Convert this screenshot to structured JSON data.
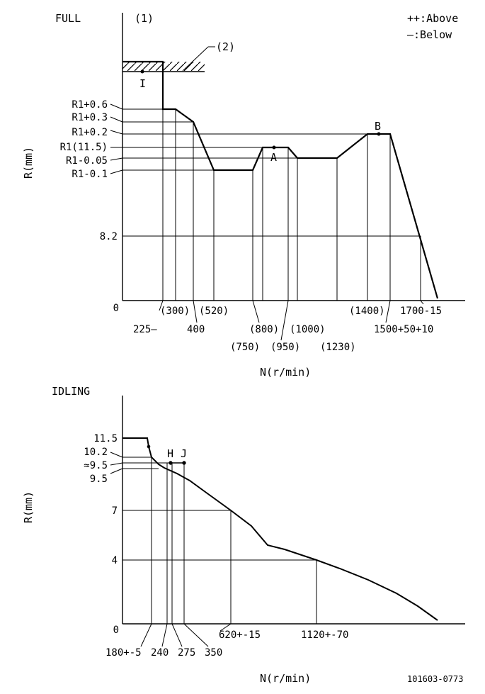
{
  "full": {
    "title": "FULL",
    "marker1": "(1)",
    "marker2": "(2)",
    "marker_I": "I",
    "legend": {
      "above": "++:Above",
      "below": "—:Below"
    },
    "ylabel": "R(mm)",
    "xlabel": "N(r/min)",
    "point_A": "A",
    "point_B": "B",
    "y_ticks": [
      "R1+0.6",
      "R1+0.3",
      "R1+0.2",
      "R1(11.5)",
      "R1-0.05",
      "R1-0.1",
      "8.2",
      "0"
    ],
    "x_ticks": [
      "225—",
      "(300)",
      "400",
      "(520)",
      "(750)",
      "(800)",
      "(950)",
      "(1000)",
      "(1230)",
      "(1400)",
      "1500+50+10",
      "1700-15"
    ]
  },
  "idling": {
    "title": "IDLING",
    "ylabel": "R(mm)",
    "xlabel": "N(r/min)",
    "point_H": "H",
    "point_J": "J",
    "y_ticks": [
      "11.5",
      "10.2",
      "≈9.5",
      "9.5",
      "7",
      "4",
      "0"
    ],
    "x_ticks": [
      "180+-5",
      "240",
      "275",
      "350",
      "620+-15",
      "1120+-70"
    ]
  },
  "doc_code": "101603-0773"
}
